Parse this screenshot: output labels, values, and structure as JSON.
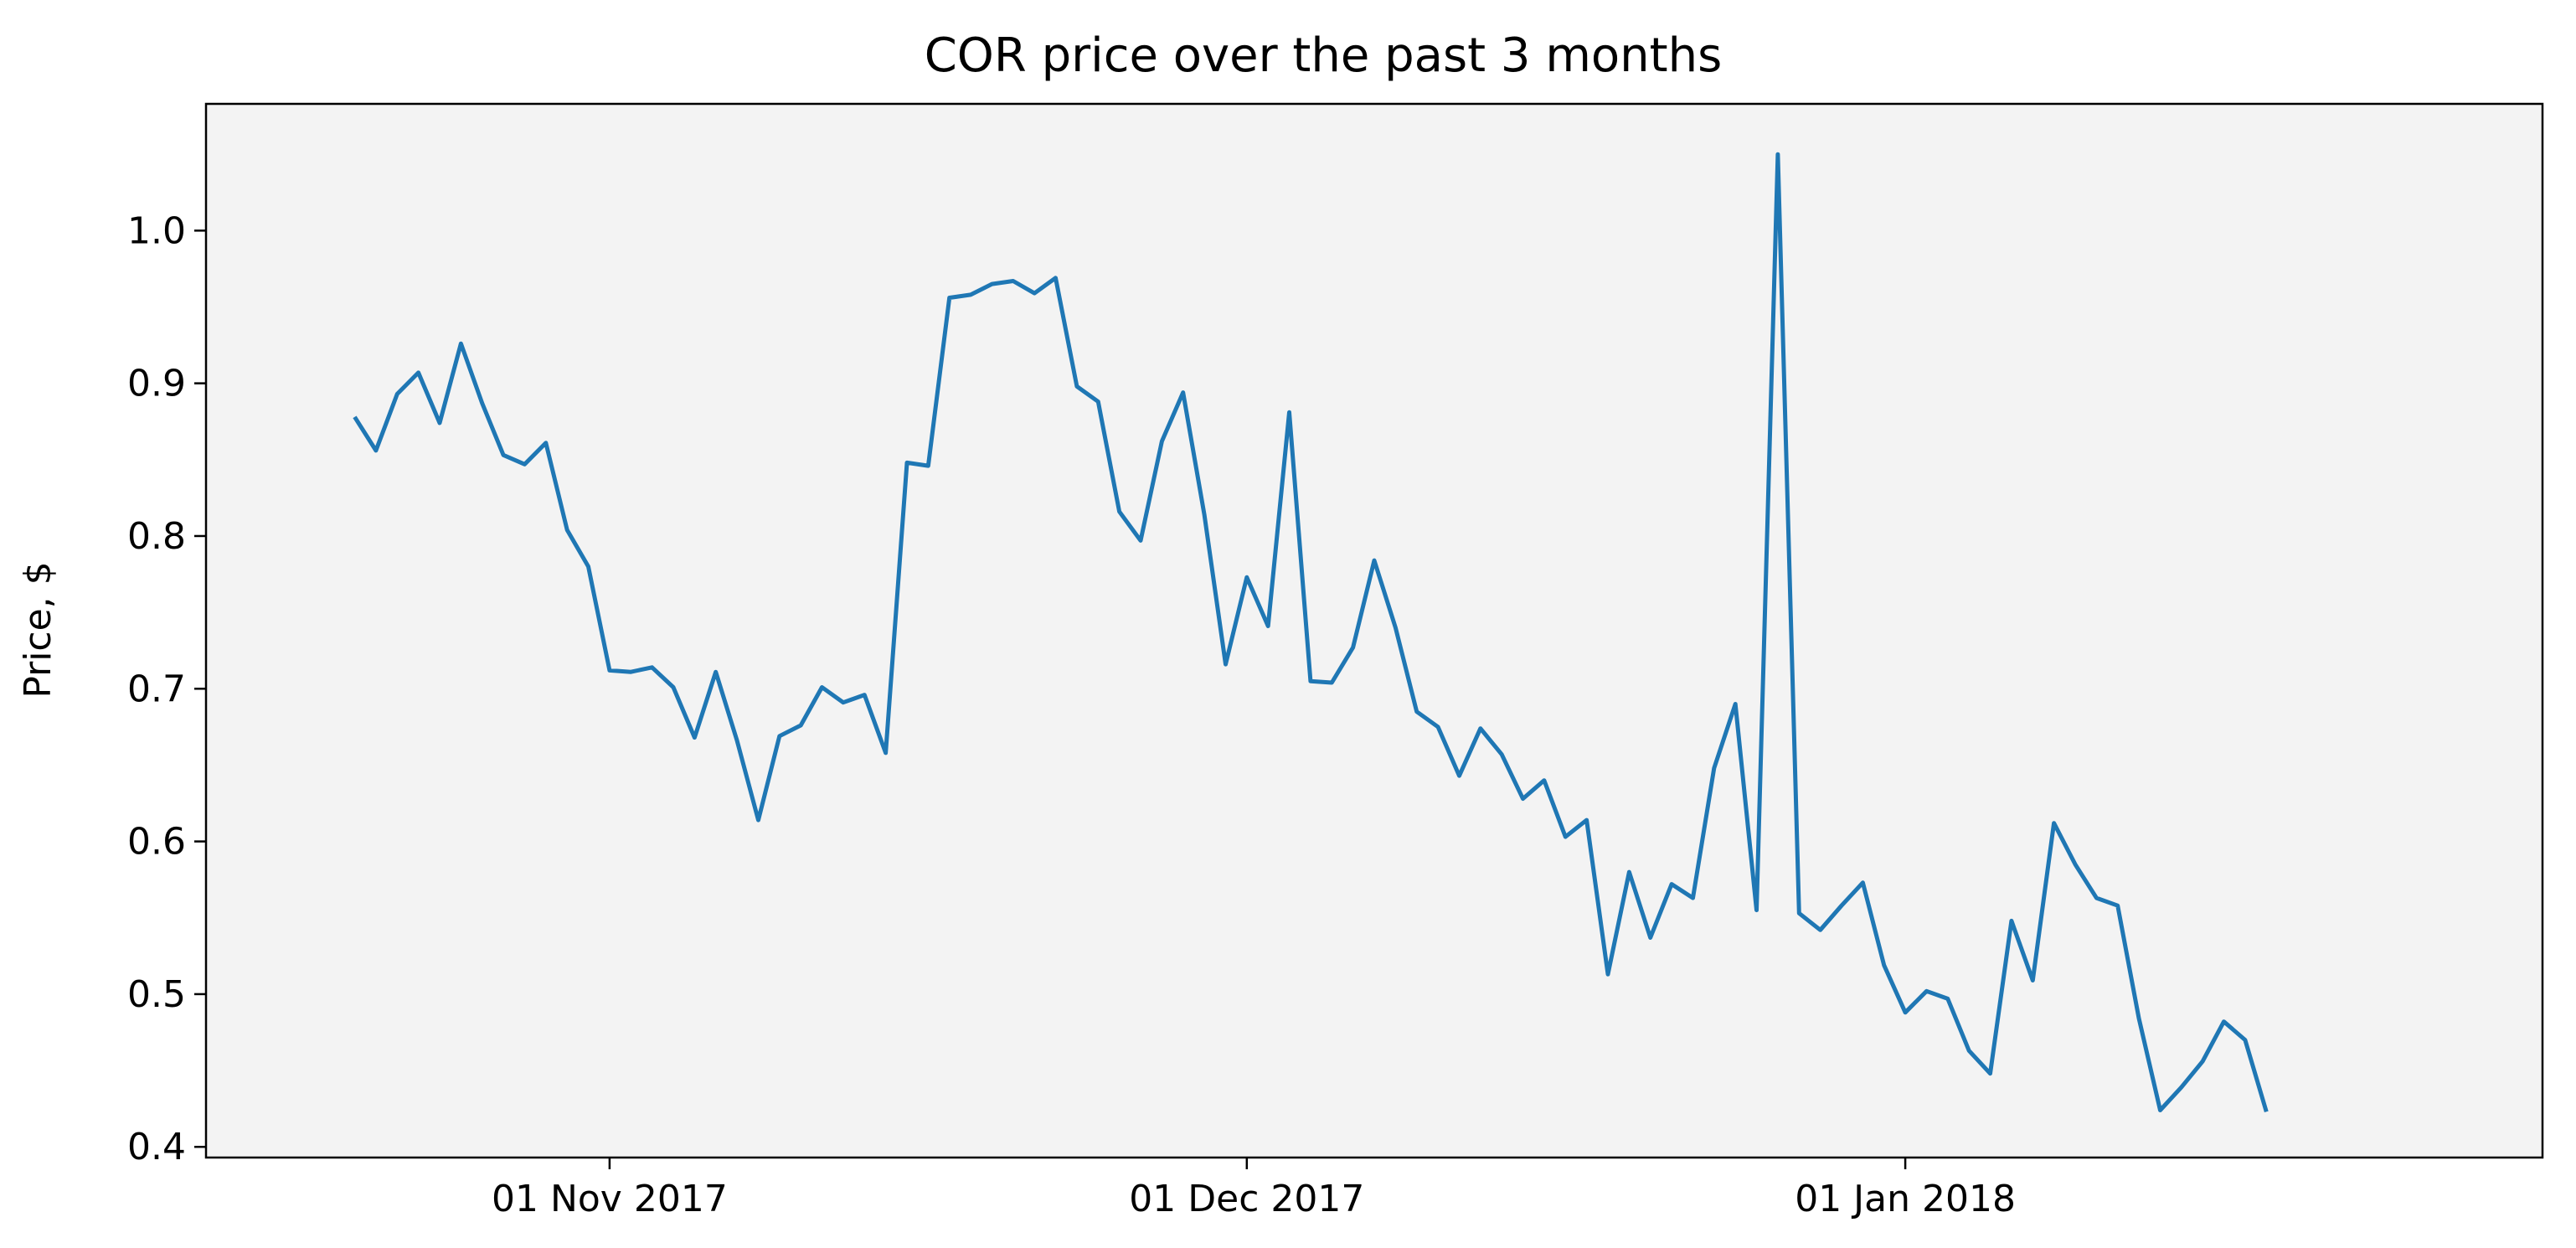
{
  "chart_data": {
    "type": "line",
    "title": "COR price over the past 3 months",
    "xlabel": "",
    "ylabel": "Price, $",
    "x_tick_labels": [
      "01 Nov 2017",
      "01 Dec 2017",
      "01 Jan 2018"
    ],
    "x_ticks": [
      "2017-11-01",
      "2017-12-01",
      "2018-01-01"
    ],
    "y_ticks": [
      0.4,
      0.5,
      0.6,
      0.7,
      0.8,
      0.9,
      1.0
    ],
    "y_tick_labels": [
      "0.4",
      "0.5",
      "0.6",
      "0.7",
      "0.8",
      "0.9",
      "1.0"
    ],
    "xlim": [
      "2017-10-13",
      "2018-01-31"
    ],
    "ylim": [
      0.393,
      1.083
    ],
    "grid": false,
    "background_color": "#f3f3f3",
    "series": [
      {
        "color": "#1f77b4",
        "points": [
          [
            "2017-10-20",
            0.878
          ],
          [
            "2017-10-21",
            0.856
          ],
          [
            "2017-10-22",
            0.893
          ],
          [
            "2017-10-23",
            0.907
          ],
          [
            "2017-10-24",
            0.874
          ],
          [
            "2017-10-25",
            0.926
          ],
          [
            "2017-10-26",
            0.887
          ],
          [
            "2017-10-27",
            0.853
          ],
          [
            "2017-10-28",
            0.847
          ],
          [
            "2017-10-29",
            0.861
          ],
          [
            "2017-10-30",
            0.804
          ],
          [
            "2017-10-31",
            0.78
          ],
          [
            "2017-11-01",
            0.712
          ],
          [
            "2017-11-02",
            0.711
          ],
          [
            "2017-11-03",
            0.714
          ],
          [
            "2017-11-04",
            0.701
          ],
          [
            "2017-11-05",
            0.668
          ],
          [
            "2017-11-06",
            0.711
          ],
          [
            "2017-11-07",
            0.666
          ],
          [
            "2017-11-08",
            0.614
          ],
          [
            "2017-11-09",
            0.669
          ],
          [
            "2017-11-10",
            0.676
          ],
          [
            "2017-11-11",
            0.701
          ],
          [
            "2017-11-12",
            0.691
          ],
          [
            "2017-11-13",
            0.696
          ],
          [
            "2017-11-14",
            0.658
          ],
          [
            "2017-11-15",
            0.848
          ],
          [
            "2017-11-16",
            0.846
          ],
          [
            "2017-11-17",
            0.956
          ],
          [
            "2017-11-18",
            0.958
          ],
          [
            "2017-11-19",
            0.965
          ],
          [
            "2017-11-20",
            0.967
          ],
          [
            "2017-11-21",
            0.959
          ],
          [
            "2017-11-22",
            0.969
          ],
          [
            "2017-11-23",
            0.898
          ],
          [
            "2017-11-24",
            0.888
          ],
          [
            "2017-11-25",
            0.816
          ],
          [
            "2017-11-26",
            0.797
          ],
          [
            "2017-11-27",
            0.862
          ],
          [
            "2017-11-28",
            0.894
          ],
          [
            "2017-11-29",
            0.814
          ],
          [
            "2017-11-30",
            0.716
          ],
          [
            "2017-12-01",
            0.773
          ],
          [
            "2017-12-02",
            0.741
          ],
          [
            "2017-12-03",
            0.881
          ],
          [
            "2017-12-04",
            0.705
          ],
          [
            "2017-12-05",
            0.704
          ],
          [
            "2017-12-06",
            0.727
          ],
          [
            "2017-12-07",
            0.784
          ],
          [
            "2017-12-08",
            0.74
          ],
          [
            "2017-12-09",
            0.685
          ],
          [
            "2017-12-10",
            0.675
          ],
          [
            "2017-12-11",
            0.643
          ],
          [
            "2017-12-12",
            0.674
          ],
          [
            "2017-12-13",
            0.657
          ],
          [
            "2017-12-14",
            0.628
          ],
          [
            "2017-12-15",
            0.64
          ],
          [
            "2017-12-16",
            0.603
          ],
          [
            "2017-12-17",
            0.614
          ],
          [
            "2017-12-18",
            0.513
          ],
          [
            "2017-12-19",
            0.58
          ],
          [
            "2017-12-20",
            0.537
          ],
          [
            "2017-12-21",
            0.572
          ],
          [
            "2017-12-22",
            0.563
          ],
          [
            "2017-12-23",
            0.648
          ],
          [
            "2017-12-24",
            0.69
          ],
          [
            "2017-12-25",
            0.555
          ],
          [
            "2017-12-26",
            1.05
          ],
          [
            "2017-12-27",
            0.553
          ],
          [
            "2017-12-28",
            0.542
          ],
          [
            "2017-12-29",
            0.558
          ],
          [
            "2017-12-30",
            0.573
          ],
          [
            "2017-12-31",
            0.519
          ],
          [
            "2018-01-01",
            0.488
          ],
          [
            "2018-01-02",
            0.502
          ],
          [
            "2018-01-03",
            0.497
          ],
          [
            "2018-01-04",
            0.463
          ],
          [
            "2018-01-05",
            0.448
          ],
          [
            "2018-01-06",
            0.548
          ],
          [
            "2018-01-07",
            0.509
          ],
          [
            "2018-01-08",
            0.612
          ],
          [
            "2018-01-09",
            0.585
          ],
          [
            "2018-01-10",
            0.563
          ],
          [
            "2018-01-11",
            0.558
          ],
          [
            "2018-01-12",
            0.484
          ],
          [
            "2018-01-13",
            0.424
          ],
          [
            "2018-01-14",
            0.439
          ],
          [
            "2018-01-15",
            0.456
          ],
          [
            "2018-01-16",
            0.482
          ],
          [
            "2018-01-17",
            0.47
          ],
          [
            "2018-01-18",
            0.423
          ]
        ]
      }
    ]
  }
}
